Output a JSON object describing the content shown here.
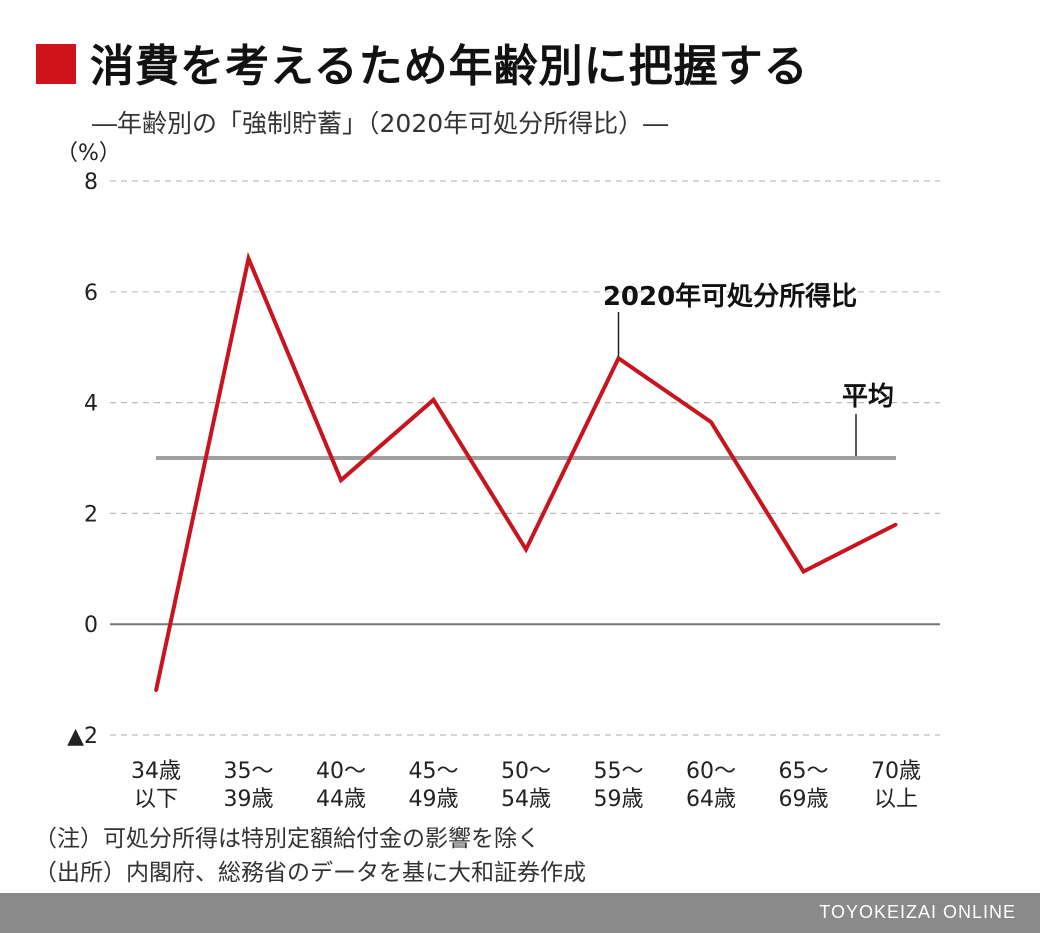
{
  "header": {
    "title": "消費を考えるため年齢別に把握する",
    "subtitle": "―年齢別の「強制貯蓄」（2020年可処分所得比）―"
  },
  "chart_data": {
    "type": "line",
    "ylabel": "（%）",
    "ylim": [
      -2,
      8
    ],
    "yticks": [
      8,
      6,
      4,
      2,
      0,
      -2
    ],
    "ytick_labels": [
      "8",
      "6",
      "4",
      "2",
      "0",
      "▲2"
    ],
    "categories": [
      [
        "34歳",
        "以下"
      ],
      [
        "35～",
        "39歳"
      ],
      [
        "40～",
        "44歳"
      ],
      [
        "45～",
        "49歳"
      ],
      [
        "50～",
        "54歳"
      ],
      [
        "55～",
        "59歳"
      ],
      [
        "60～",
        "64歳"
      ],
      [
        "65～",
        "69歳"
      ],
      [
        "70歳",
        "以上"
      ]
    ],
    "series": [
      {
        "name": "2020年可処分所得比",
        "values": [
          -1.2,
          6.6,
          2.6,
          4.05,
          1.35,
          4.8,
          3.65,
          0.95,
          1.8
        ],
        "color": "#c8141e"
      },
      {
        "name": "平均",
        "values": [
          3.0,
          3.0,
          3.0,
          3.0,
          3.0,
          3.0,
          3.0,
          3.0,
          3.0
        ],
        "color": "#a0a0a0"
      }
    ],
    "grid": true
  },
  "notes": [
    "（注）可処分所得は特別定額給付金の影響を除く",
    "（出所）内閣府、総務省のデータを基に大和証券作成"
  ],
  "footer": {
    "brand": "TOYOKEIZAI ONLINE"
  }
}
